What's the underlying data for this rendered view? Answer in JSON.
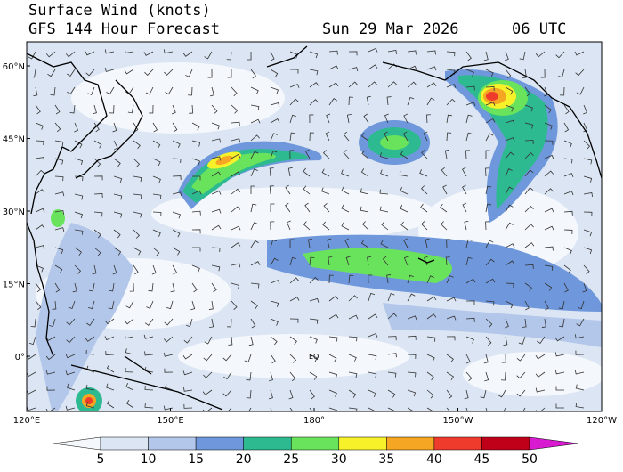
{
  "header": {
    "title": "Surface Wind (knots)",
    "subtitle": "GFS 144 Hour Forecast",
    "date": "Sun 29 Mar 2026",
    "time": "06 UTC"
  },
  "map": {
    "lat_labels": [
      {
        "value": 60,
        "label": "60°N"
      },
      {
        "value": 45,
        "label": "45°N"
      },
      {
        "value": 30,
        "label": "30°N"
      },
      {
        "value": 15,
        "label": "15°N"
      },
      {
        "value": 0,
        "label": "0°"
      }
    ],
    "lon_labels": [
      {
        "value": 120,
        "label": "120°E"
      },
      {
        "value": 150,
        "label": "150°E"
      },
      {
        "value": 180,
        "label": "180°"
      },
      {
        "value": 210,
        "label": "150°W"
      },
      {
        "value": 240,
        "label": "120°W"
      }
    ],
    "equator_label": "EQ"
  },
  "colorbar": {
    "ticks": [
      5,
      10,
      15,
      20,
      25,
      30,
      35,
      40,
      45,
      50
    ],
    "colors": [
      "#f4f7fb",
      "#dbe5f3",
      "#b3c7ea",
      "#6f97db",
      "#2dba91",
      "#6ae35c",
      "#f7f12a",
      "#f5a623",
      "#ef3b2c",
      "#c00018",
      "#d81bd0"
    ]
  }
}
